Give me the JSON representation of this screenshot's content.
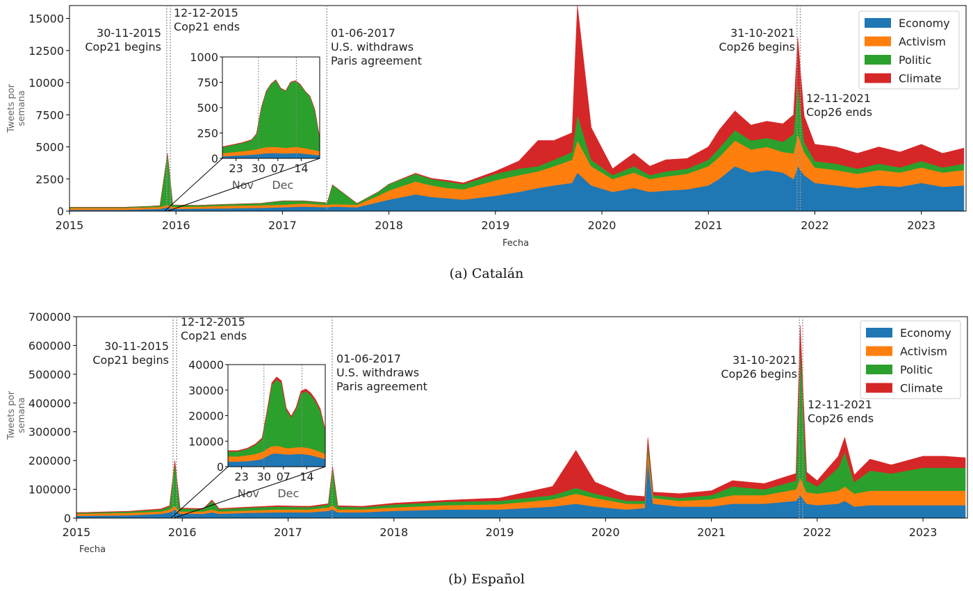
{
  "colors": {
    "Economy": "#1f77b4",
    "Activism": "#ff7f0e",
    "Politic": "#2ca02c",
    "Climate": "#d62728"
  },
  "captions": {
    "a": "(a) Catalán",
    "b": "(b) Español"
  },
  "chart_data": [
    {
      "type": "area",
      "stacked": true,
      "panel": "a",
      "xlabel": "Fecha",
      "ylabel": "Tweets por semana",
      "ylim": [
        0,
        16000
      ],
      "yticks": [
        0,
        2500,
        5000,
        7500,
        10000,
        12500,
        15000
      ],
      "xticks": [
        "2015",
        "2016",
        "2017",
        "2018",
        "2019",
        "2020",
        "2021",
        "2022",
        "2023"
      ],
      "legend": {
        "placement": "top-right",
        "entries": [
          "Economy",
          "Activism",
          "Politic",
          "Climate"
        ]
      },
      "x": [
        2015.0,
        2015.5,
        2015.75,
        2015.85,
        2015.92,
        2015.97,
        2016.2,
        2016.5,
        2016.8,
        2017.0,
        2017.2,
        2017.42,
        2017.47,
        2017.7,
        2017.9,
        2018.0,
        2018.25,
        2018.4,
        2018.55,
        2018.7,
        2019.0,
        2019.22,
        2019.4,
        2019.55,
        2019.72,
        2019.77,
        2019.9,
        2020.1,
        2020.3,
        2020.45,
        2020.6,
        2020.8,
        2021.0,
        2021.1,
        2021.25,
        2021.4,
        2021.55,
        2021.7,
        2021.8,
        2021.84,
        2021.9,
        2022.0,
        2022.2,
        2022.4,
        2022.6,
        2022.8,
        2023.0,
        2023.2,
        2023.4
      ],
      "series": [
        {
          "name": "Economy",
          "values": [
            100,
            100,
            150,
            180,
            300,
            180,
            200,
            220,
            260,
            300,
            350,
            300,
            350,
            300,
            700,
            900,
            1300,
            1100,
            1000,
            900,
            1200,
            1500,
            1800,
            2000,
            2200,
            3000,
            2000,
            1500,
            1800,
            1500,
            1600,
            1700,
            2000,
            2500,
            3500,
            3000,
            3200,
            3000,
            2500,
            3500,
            2800,
            2200,
            2000,
            1800,
            2000,
            1900,
            2200,
            1900,
            2000
          ]
        },
        {
          "name": "Activism",
          "values": [
            150,
            150,
            150,
            150,
            200,
            150,
            150,
            200,
            200,
            200,
            250,
            200,
            200,
            200,
            500,
            700,
            1000,
            900,
            800,
            800,
            1200,
            1300,
            1300,
            1500,
            1800,
            2500,
            1500,
            1000,
            1200,
            1000,
            1100,
            1200,
            1500,
            1700,
            2000,
            1800,
            1800,
            1600,
            2000,
            2500,
            1800,
            1200,
            1200,
            1100,
            1200,
            1100,
            1200,
            1100,
            1200
          ]
        },
        {
          "name": "Politic",
          "values": [
            50,
            50,
            80,
            100,
            4000,
            150,
            100,
            120,
            150,
            300,
            200,
            150,
            1500,
            100,
            300,
            500,
            600,
            500,
            500,
            400,
            500,
            500,
            400,
            500,
            600,
            2000,
            500,
            300,
            500,
            300,
            400,
            400,
            500,
            700,
            800,
            700,
            700,
            800,
            1500,
            4000,
            800,
            500,
            500,
            400,
            500,
            400,
            500,
            400,
            500
          ]
        },
        {
          "name": "Climate",
          "values": [
            0,
            0,
            0,
            0,
            0,
            0,
            0,
            0,
            0,
            0,
            0,
            0,
            0,
            0,
            0,
            0,
            50,
            50,
            100,
            100,
            200,
            600,
            2000,
            1500,
            1500,
            8500,
            2500,
            500,
            1000,
            700,
            900,
            800,
            1000,
            1400,
            1500,
            1200,
            1300,
            1400,
            1500,
            3500,
            2000,
            1300,
            1300,
            1200,
            1300,
            1200,
            1300,
            1100,
            1200
          ]
        }
      ],
      "annotations": [
        {
          "date": "30-11-2015",
          "label": "Cop21 begins"
        },
        {
          "date": "12-12-2015",
          "label": "Cop21 ends"
        },
        {
          "date": "01-06-2017",
          "label": "U.S. withdraws Paris agreement"
        },
        {
          "date": "31-10-2021",
          "label": "Cop26 begins"
        },
        {
          "date": "12-11-2021",
          "label": "Cop26 ends"
        }
      ],
      "inset": {
        "ylim": [
          0,
          1000
        ],
        "yticks": [
          0,
          250,
          500,
          750,
          1000
        ],
        "xticks": [
          "23",
          "30",
          "07",
          "14"
        ],
        "month_labels": [
          "Nov",
          "Dec"
        ],
        "x": [
          0,
          0.1,
          0.2,
          0.3,
          0.35,
          0.4,
          0.45,
          0.5,
          0.55,
          0.6,
          0.65,
          0.7,
          0.75,
          0.8,
          0.85,
          0.9,
          0.95,
          1.0
        ],
        "series": [
          {
            "name": "Economy",
            "values": [
              20,
              25,
              30,
              35,
              40,
              45,
              50,
              52,
              52,
              50,
              48,
              50,
              52,
              50,
              45,
              40,
              35,
              30
            ]
          },
          {
            "name": "Activism",
            "values": [
              30,
              35,
              40,
              45,
              50,
              55,
              60,
              60,
              60,
              58,
              55,
              58,
              60,
              58,
              55,
              50,
              45,
              40
            ]
          },
          {
            "name": "Politic",
            "values": [
              60,
              70,
              80,
              100,
              150,
              400,
              550,
              620,
              660,
              580,
              560,
              640,
              650,
              620,
              560,
              520,
              400,
              130
            ]
          },
          {
            "name": "Climate",
            "values": [
              5,
              5,
              5,
              5,
              5,
              5,
              5,
              5,
              5,
              5,
              5,
              5,
              5,
              5,
              5,
              5,
              5,
              5
            ]
          }
        ]
      }
    },
    {
      "type": "area",
      "stacked": true,
      "panel": "b",
      "xlabel": "Fecha",
      "ylabel": "Tweets por semana",
      "ylim": [
        0,
        700000
      ],
      "yticks": [
        0,
        100000,
        200000,
        300000,
        400000,
        500000,
        600000,
        700000
      ],
      "xticks": [
        "2015",
        "2016",
        "2017",
        "2018",
        "2019",
        "2020",
        "2021",
        "2022",
        "2023"
      ],
      "legend": {
        "placement": "top-right",
        "entries": [
          "Economy",
          "Activism",
          "Politic",
          "Climate"
        ]
      },
      "x": [
        2015.0,
        2015.5,
        2015.8,
        2015.88,
        2015.93,
        2015.98,
        2016.2,
        2016.28,
        2016.35,
        2016.6,
        2016.9,
        2017.2,
        2017.38,
        2017.42,
        2017.47,
        2017.7,
        2018.0,
        2018.5,
        2019.0,
        2019.5,
        2019.72,
        2019.9,
        2020.2,
        2020.37,
        2020.4,
        2020.45,
        2020.7,
        2021.0,
        2021.2,
        2021.5,
        2021.8,
        2021.84,
        2021.9,
        2022.0,
        2022.2,
        2022.26,
        2022.35,
        2022.5,
        2022.7,
        2023.0,
        2023.2,
        2023.4
      ],
      "series": [
        {
          "name": "Economy",
          "values": [
            8000,
            10000,
            15000,
            20000,
            30000,
            15000,
            15000,
            20000,
            15000,
            18000,
            20000,
            20000,
            25000,
            30000,
            20000,
            20000,
            25000,
            30000,
            30000,
            40000,
            50000,
            40000,
            30000,
            35000,
            200000,
            50000,
            40000,
            40000,
            50000,
            50000,
            60000,
            80000,
            50000,
            45000,
            50000,
            60000,
            40000,
            45000,
            45000,
            45000,
            45000,
            45000
          ]
        },
        {
          "name": "Activism",
          "values": [
            7000,
            8000,
            8000,
            10000,
            12000,
            8000,
            8000,
            10000,
            8000,
            8000,
            10000,
            10000,
            12000,
            15000,
            10000,
            10000,
            12000,
            15000,
            18000,
            25000,
            35000,
            30000,
            20000,
            15000,
            30000,
            20000,
            20000,
            25000,
            30000,
            30000,
            40000,
            60000,
            40000,
            40000,
            45000,
            50000,
            45000,
            50000,
            50000,
            50000,
            50000,
            50000
          ]
        },
        {
          "name": "Politic",
          "values": [
            3000,
            5000,
            7000,
            10000,
            150000,
            10000,
            8000,
            30000,
            8000,
            10000,
            10000,
            8000,
            10000,
            130000,
            10000,
            8000,
            10000,
            12000,
            12000,
            15000,
            20000,
            15000,
            10000,
            10000,
            30000,
            10000,
            10000,
            15000,
            30000,
            20000,
            30000,
            450000,
            40000,
            25000,
            80000,
            120000,
            40000,
            70000,
            60000,
            80000,
            80000,
            80000
          ]
        },
        {
          "name": "Climate",
          "values": [
            1000,
            1000,
            2000,
            3000,
            8000,
            2000,
            2000,
            3000,
            2000,
            2000,
            3000,
            3000,
            3000,
            5000,
            3000,
            3000,
            5000,
            5000,
            10000,
            30000,
            130000,
            40000,
            20000,
            15000,
            20000,
            10000,
            15000,
            15000,
            20000,
            20000,
            25000,
            80000,
            30000,
            20000,
            40000,
            50000,
            25000,
            40000,
            30000,
            40000,
            40000,
            35000
          ]
        }
      ],
      "annotations": [
        {
          "date": "30-11-2015",
          "label": "Cop21 begins"
        },
        {
          "date": "12-12-2015",
          "label": "Cop21 ends"
        },
        {
          "date": "01-06-2017",
          "label": "U.S. withdraws Paris agreement"
        },
        {
          "date": "31-10-2021",
          "label": "Cop26 begins"
        },
        {
          "date": "12-11-2021",
          "label": "Cop26 ends"
        }
      ],
      "inset": {
        "ylim": [
          0,
          40000
        ],
        "yticks": [
          0,
          10000,
          20000,
          30000,
          40000
        ],
        "xticks": [
          "23",
          "30",
          "07",
          "14"
        ],
        "month_labels": [
          "Nov",
          "Dec"
        ],
        "x": [
          0,
          0.1,
          0.2,
          0.28,
          0.35,
          0.4,
          0.45,
          0.5,
          0.55,
          0.6,
          0.65,
          0.7,
          0.75,
          0.8,
          0.85,
          0.9,
          0.95,
          1.0
        ],
        "series": [
          {
            "name": "Economy",
            "values": [
              2000,
              2000,
              2200,
              2500,
              3000,
              4000,
              5000,
              5200,
              5000,
              4800,
              4800,
              5000,
              5000,
              4800,
              4500,
              4000,
              3500,
              3000
            ]
          },
          {
            "name": "Activism",
            "values": [
              2000,
              2000,
              2300,
              2500,
              2800,
              3000,
              3000,
              3000,
              2800,
              2500,
              2500,
              2600,
              2700,
              2700,
              2600,
              2500,
              2300,
              2000
            ]
          },
          {
            "name": "Politic",
            "values": [
              2000,
              2000,
              2500,
              3500,
              5000,
              14000,
              24000,
              26000,
              25000,
              15000,
              12000,
              15000,
              21000,
              22000,
              21000,
              19000,
              16000,
              9000
            ]
          },
          {
            "name": "Climate",
            "values": [
              300,
              300,
              300,
              400,
              500,
              700,
              900,
              1000,
              900,
              700,
              600,
              700,
              900,
              1000,
              900,
              900,
              800,
              500
            ]
          }
        ]
      }
    }
  ]
}
